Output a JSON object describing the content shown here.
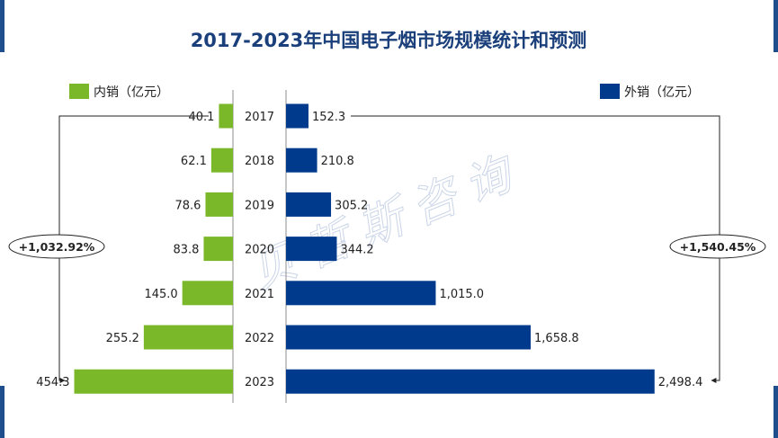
{
  "colors": {
    "domestic": "#7ab829",
    "export": "#003a8c",
    "title": "#1a3f7a",
    "text": "#222222",
    "corner": "#1f4e8c",
    "watermark": "#9fb3d6"
  },
  "watermark": "贝哲斯咨询",
  "chart_data": {
    "type": "bar",
    "orientation": "horizontal-butterfly",
    "title": "2017-2023年中国电子烟市场规模统计和预测",
    "categories": [
      "2017",
      "2018",
      "2019",
      "2020",
      "2021",
      "2022",
      "2023"
    ],
    "series": [
      {
        "name": "内销（亿元）",
        "side": "left",
        "values": [
          40.1,
          62.1,
          78.6,
          83.8,
          145.0,
          255.2,
          454.3
        ],
        "labels": [
          "40.1",
          "62.1",
          "78.6",
          "83.8",
          "145.0",
          "255.2",
          "454.3"
        ]
      },
      {
        "name": "外销（亿元）",
        "side": "right",
        "values": [
          152.3,
          210.8,
          305.2,
          344.2,
          1015.0,
          1658.8,
          2498.4
        ],
        "labels": [
          "152.3",
          "210.8",
          "305.2",
          "344.2",
          "1,015.0",
          "1,658.8",
          "2,498.4"
        ]
      }
    ],
    "left_range": [
      0,
      520
    ],
    "right_range": [
      0,
      2750
    ],
    "annotations": [
      {
        "side": "left",
        "text": "+1,032.92%",
        "from": "2017",
        "to": "2023"
      },
      {
        "side": "right",
        "text": "+1,540.45%",
        "from": "2017",
        "to": "2023"
      }
    ],
    "legend": "top-left and top-right"
  }
}
